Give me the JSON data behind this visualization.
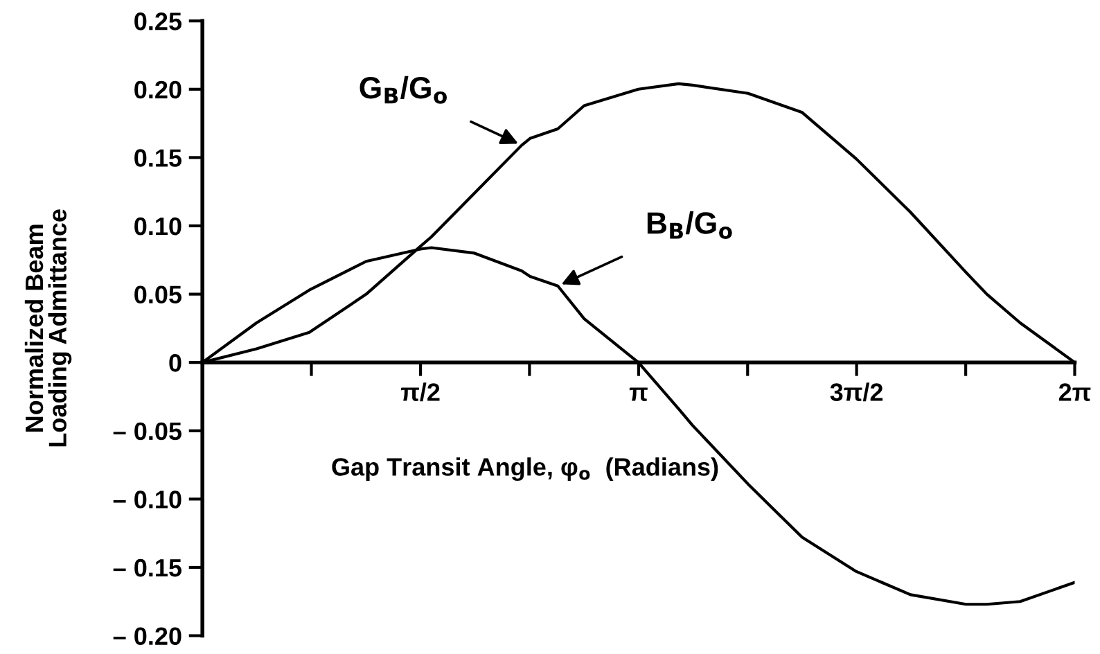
{
  "chart_data": {
    "type": "line",
    "xlabel": "Gap Transit Angle, φ$_{o}$  (Radians)",
    "ylabel": "Normalized Beam\nLoading Admittance",
    "x": [
      0,
      0.39,
      0.77,
      1.18,
      1.57,
      1.65,
      1.96,
      2.3,
      2.36,
      2.56,
      2.75,
      3.14,
      3.43,
      3.53,
      3.93,
      4.32,
      4.71,
      5.1,
      5.5,
      5.65,
      5.89,
      6.283
    ],
    "series": [
      {
        "color": "#000000",
        "values": [
          0,
          0.01,
          0.022,
          0.05,
          0.085,
          0.092,
          0.124,
          0.159,
          0.164,
          0.171,
          0.188,
          0.2,
          0.204,
          0.203,
          0.197,
          0.183,
          0.149,
          0.11,
          0.066,
          0.05,
          0.029,
          0
        ]
      },
      {
        "color": "#000000",
        "values": [
          0,
          0.029,
          0.053,
          0.074,
          0.083,
          0.084,
          0.08,
          0.067,
          0.063,
          0.056,
          0.032,
          0,
          -0.034,
          -0.046,
          -0.089,
          -0.128,
          -0.153,
          -0.17,
          -0.177,
          -0.177,
          -0.175,
          -0.161
        ]
      }
    ],
    "annotations": [
      {
        "text": "G$_{B}$/G$_{o}$",
        "x": 2.3,
        "y": 0.159
      },
      {
        "text": "B$_{B}$/G$_{o}$",
        "x": 2.56,
        "y": 0.056
      }
    ],
    "xlim": [
      0,
      6.283
    ],
    "xticks": [
      {
        "value": 0.785,
        "label": null
      },
      {
        "value": 1.571,
        "label": "π/2"
      },
      {
        "value": 2.356,
        "label": null
      },
      {
        "value": 3.142,
        "label": "π"
      },
      {
        "value": 3.927,
        "label": null
      },
      {
        "value": 4.712,
        "label": "3π/2"
      },
      {
        "value": 5.498,
        "label": null
      },
      {
        "value": 6.283,
        "label": "2π"
      }
    ],
    "ylim": [
      -0.2,
      0.25
    ],
    "yticks": [
      {
        "value": -0.2,
        "label": "– 0.20"
      },
      {
        "value": -0.15,
        "label": "– 0.15"
      },
      {
        "value": -0.1,
        "label": "– 0.10"
      },
      {
        "value": -0.05,
        "label": "– 0.05"
      },
      0,
      {
        "value": 0.05,
        "label": "0.05"
      },
      {
        "value": 0.1,
        "label": "0.10"
      },
      {
        "value": 0.15,
        "label": "0.15"
      },
      {
        "value": 0.2,
        "label": "0.20"
      },
      {
        "value": 0.25,
        "label": "0.25"
      }
    ],
    "grid": false,
    "legend": false,
    "marker": "none",
    "line_style": "solid"
  }
}
